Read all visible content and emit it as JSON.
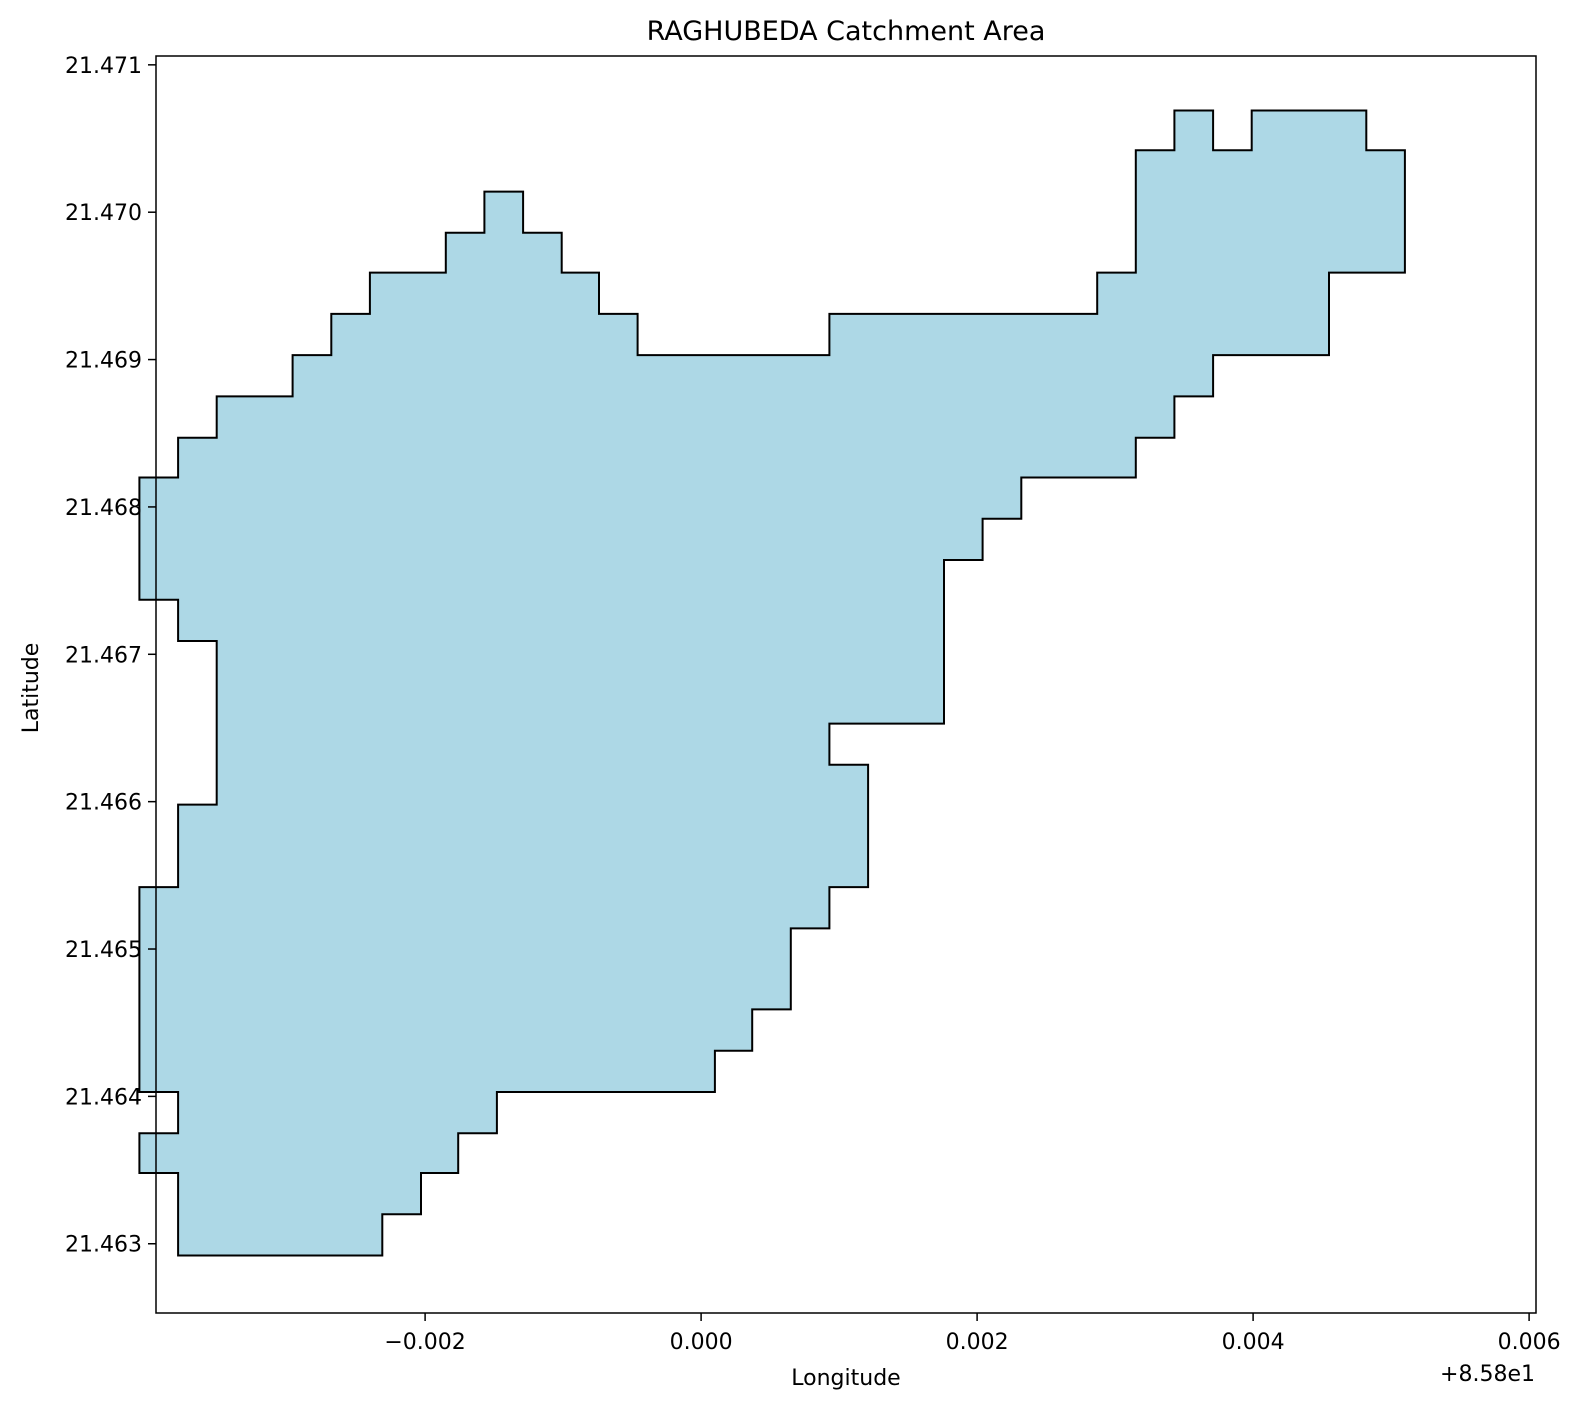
{
  "chart_data": {
    "type": "map",
    "title": "RAGHUBEDA Catchment Area",
    "xlabel": "Longitude",
    "ylabel": "Latitude",
    "x_offset_label": "+8.58e1",
    "x_offset": 85.8,
    "xlim": [
      -0.00395,
      0.00605
    ],
    "ylim": [
      21.46253,
      21.47106
    ],
    "x_ticks": [
      {
        "value": -0.002,
        "label": "−0.002"
      },
      {
        "value": 0.0,
        "label": "0.000"
      },
      {
        "value": 0.002,
        "label": "0.002"
      },
      {
        "value": 0.004,
        "label": "0.004"
      },
      {
        "value": 0.006,
        "label": "0.006"
      }
    ],
    "y_ticks": [
      {
        "value": 21.463,
        "label": "21.463"
      },
      {
        "value": 21.464,
        "label": "21.464"
      },
      {
        "value": 21.465,
        "label": "21.465"
      },
      {
        "value": 21.466,
        "label": "21.466"
      },
      {
        "value": 21.467,
        "label": "21.467"
      },
      {
        "value": 21.468,
        "label": "21.468"
      },
      {
        "value": 21.469,
        "label": "21.469"
      },
      {
        "value": 21.47,
        "label": "21.470"
      },
      {
        "value": 21.471,
        "label": "21.471"
      }
    ],
    "fill_color": "#add8e6",
    "edge_color": "#000000",
    "grid": false,
    "polygon": [
      [
        -0.00315,
        21.46292
      ],
      [
        -0.00231,
        21.46292
      ],
      [
        -0.00231,
        21.4632
      ],
      [
        -0.00203,
        21.4632
      ],
      [
        -0.00203,
        21.46348
      ],
      [
        -0.00176,
        21.46348
      ],
      [
        -0.00176,
        21.46375
      ],
      [
        -0.00148,
        21.46375
      ],
      [
        -0.00148,
        21.46403
      ],
      [
        0.0001,
        21.46403
      ],
      [
        0.0001,
        21.46431
      ],
      [
        0.00037,
        21.46431
      ],
      [
        0.00037,
        21.46459
      ],
      [
        0.00065,
        21.46459
      ],
      [
        0.00065,
        21.46514
      ],
      [
        0.00093,
        21.46514
      ],
      [
        0.00093,
        21.46542
      ],
      [
        0.00121,
        21.46542
      ],
      [
        0.00121,
        21.46625
      ],
      [
        0.00093,
        21.46625
      ],
      [
        0.00093,
        21.46653
      ],
      [
        0.00176,
        21.46653
      ],
      [
        0.00176,
        21.46764
      ],
      [
        0.00204,
        21.46764
      ],
      [
        0.00204,
        21.46792
      ],
      [
        0.00232,
        21.46792
      ],
      [
        0.00232,
        21.4682
      ],
      [
        0.00315,
        21.4682
      ],
      [
        0.00315,
        21.46847
      ],
      [
        0.00343,
        21.46847
      ],
      [
        0.00343,
        21.46875
      ],
      [
        0.00371,
        21.46875
      ],
      [
        0.00371,
        21.46903
      ],
      [
        0.00455,
        21.46903
      ],
      [
        0.00455,
        21.46959
      ],
      [
        0.0051,
        21.46959
      ],
      [
        0.0051,
        21.47042
      ],
      [
        0.00482,
        21.47042
      ],
      [
        0.00482,
        21.47069
      ],
      [
        0.00399,
        21.47069
      ],
      [
        0.00399,
        21.47042
      ],
      [
        0.00371,
        21.47042
      ],
      [
        0.00371,
        21.47069
      ],
      [
        0.00343,
        21.47069
      ],
      [
        0.00343,
        21.47042
      ],
      [
        0.00315,
        21.47042
      ],
      [
        0.00315,
        21.46959
      ],
      [
        0.00287,
        21.46959
      ],
      [
        0.00287,
        21.46931
      ],
      [
        0.00093,
        21.46931
      ],
      [
        0.00093,
        21.46903
      ],
      [
        -0.00046,
        21.46903
      ],
      [
        -0.00046,
        21.46931
      ],
      [
        -0.00074,
        21.46931
      ],
      [
        -0.00074,
        21.46959
      ],
      [
        -0.00101,
        21.46959
      ],
      [
        -0.00101,
        21.46986
      ],
      [
        -0.00129,
        21.46986
      ],
      [
        -0.00129,
        21.47014
      ],
      [
        -0.00157,
        21.47014
      ],
      [
        -0.00157,
        21.46986
      ],
      [
        -0.00185,
        21.46986
      ],
      [
        -0.00185,
        21.46959
      ],
      [
        -0.0024,
        21.46959
      ],
      [
        -0.0024,
        21.46931
      ],
      [
        -0.00268,
        21.46931
      ],
      [
        -0.00268,
        21.46903
      ],
      [
        -0.00296,
        21.46903
      ],
      [
        -0.00296,
        21.46875
      ],
      [
        -0.00351,
        21.46875
      ],
      [
        -0.00351,
        21.46847
      ],
      [
        -0.00379,
        21.46847
      ],
      [
        -0.00379,
        21.4682
      ],
      [
        -0.00407,
        21.4682
      ],
      [
        -0.00407,
        21.46737
      ],
      [
        -0.00379,
        21.46737
      ],
      [
        -0.00379,
        21.46709
      ],
      [
        -0.00351,
        21.46709
      ],
      [
        -0.00351,
        21.46598
      ],
      [
        -0.00379,
        21.46598
      ],
      [
        -0.00379,
        21.46542
      ],
      [
        -0.00407,
        21.46542
      ],
      [
        -0.00407,
        21.46403
      ],
      [
        -0.00379,
        21.46403
      ],
      [
        -0.00379,
        21.46375
      ],
      [
        -0.00407,
        21.46375
      ],
      [
        -0.00407,
        21.46348
      ],
      [
        -0.00379,
        21.46348
      ],
      [
        -0.00379,
        21.46292
      ]
    ]
  }
}
